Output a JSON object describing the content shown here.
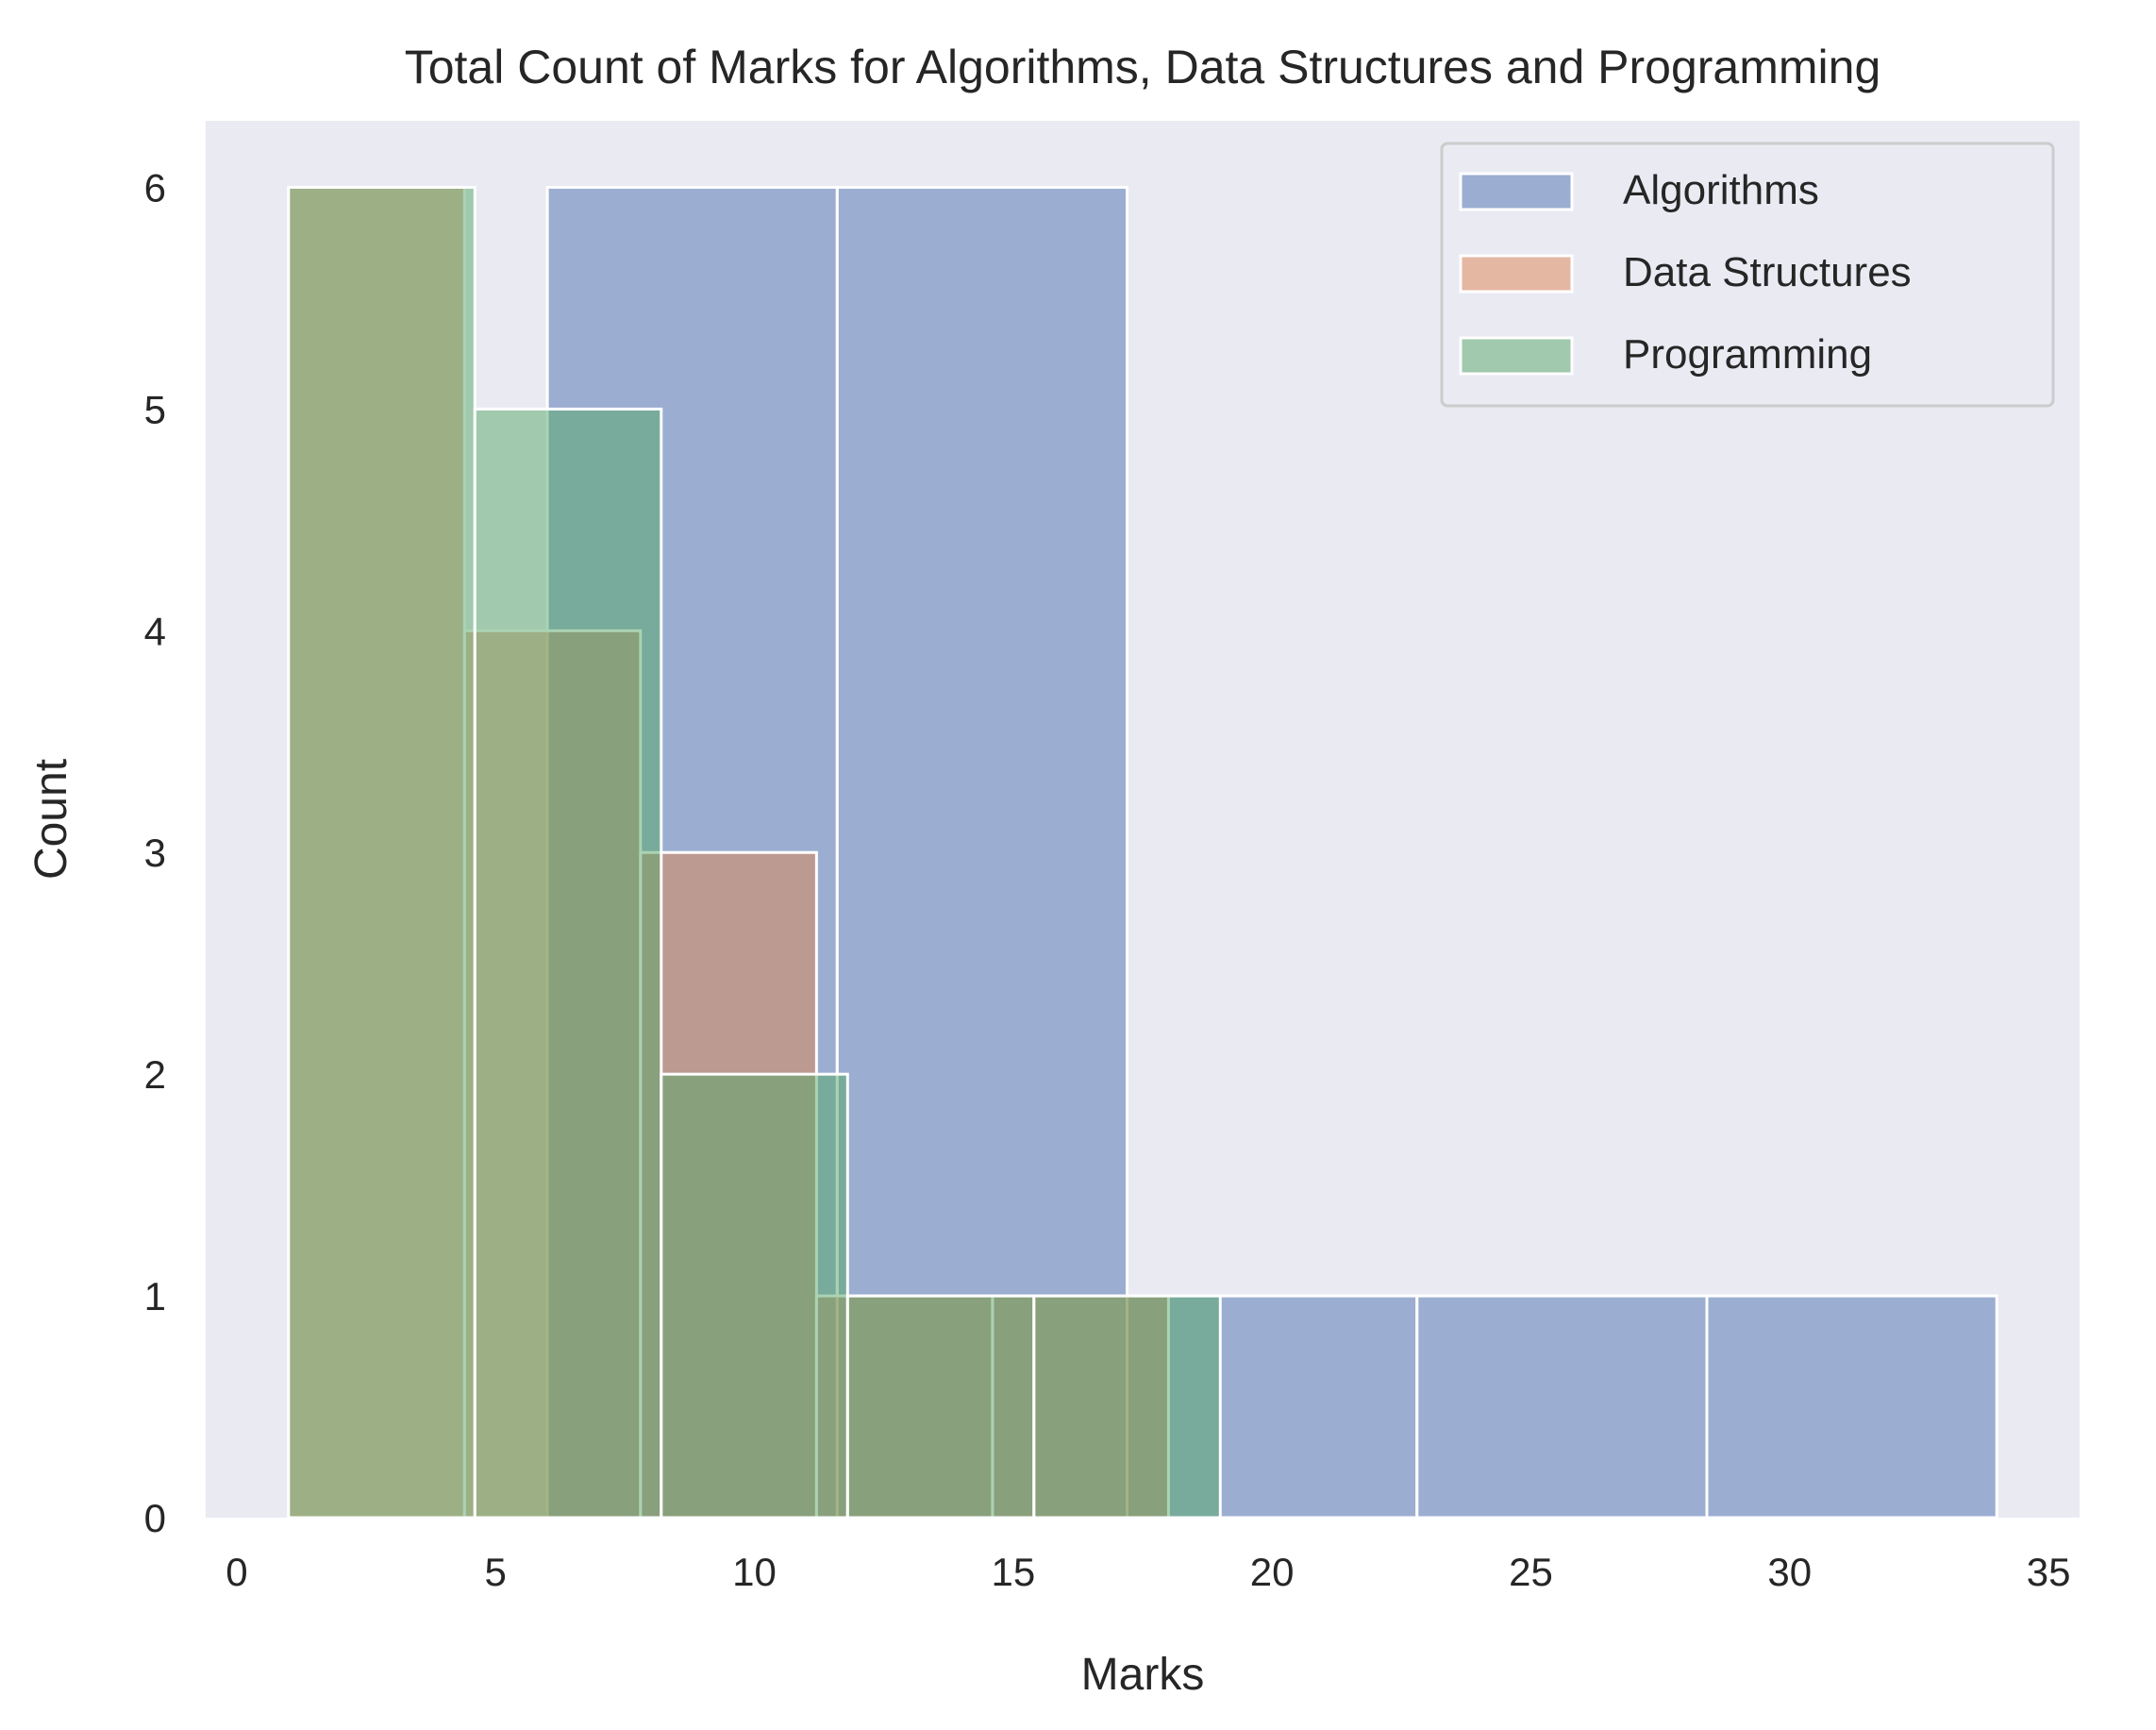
{
  "chart_data": {
    "type": "bar",
    "chart_subtype": "histogram",
    "title": "Total Count of Marks for Algorithms, Data Structures and Programming",
    "xlabel": "Marks",
    "ylabel": "Count",
    "xlim": [
      -0.6,
      35.6
    ],
    "ylim": [
      0,
      6.3
    ],
    "x_ticks": [
      0,
      5,
      10,
      15,
      20,
      25,
      30,
      35
    ],
    "y_ticks": [
      0,
      1,
      2,
      3,
      4,
      5,
      6
    ],
    "grid": false,
    "legend_position": "top-right",
    "series": [
      {
        "name": "Algorithms",
        "color": "#4c72b0",
        "bins": [
          {
            "x0": 6.0,
            "x1": 11.6,
            "count": 6
          },
          {
            "x0": 11.6,
            "x1": 17.2,
            "count": 6
          },
          {
            "x0": 17.2,
            "x1": 22.8,
            "count": 1
          },
          {
            "x0": 22.8,
            "x1": 28.4,
            "count": 1
          },
          {
            "x0": 28.4,
            "x1": 34.0,
            "count": 1
          }
        ]
      },
      {
        "name": "Data Structures",
        "color": "#dd8452",
        "bins": [
          {
            "x0": 1.0,
            "x1": 4.4,
            "count": 6
          },
          {
            "x0": 4.4,
            "x1": 7.8,
            "count": 4
          },
          {
            "x0": 7.8,
            "x1": 11.2,
            "count": 3
          },
          {
            "x0": 11.2,
            "x1": 14.6,
            "count": 1
          },
          {
            "x0": 14.6,
            "x1": 18.0,
            "count": 1
          }
        ]
      },
      {
        "name": "Programming",
        "color": "#55a868",
        "bins": [
          {
            "x0": 1.0,
            "x1": 4.6,
            "count": 6
          },
          {
            "x0": 4.6,
            "x1": 8.2,
            "count": 5
          },
          {
            "x0": 8.2,
            "x1": 11.8,
            "count": 2
          },
          {
            "x0": 11.8,
            "x1": 15.4,
            "count": 1
          },
          {
            "x0": 15.4,
            "x1": 19.0,
            "count": 1
          }
        ]
      }
    ]
  }
}
